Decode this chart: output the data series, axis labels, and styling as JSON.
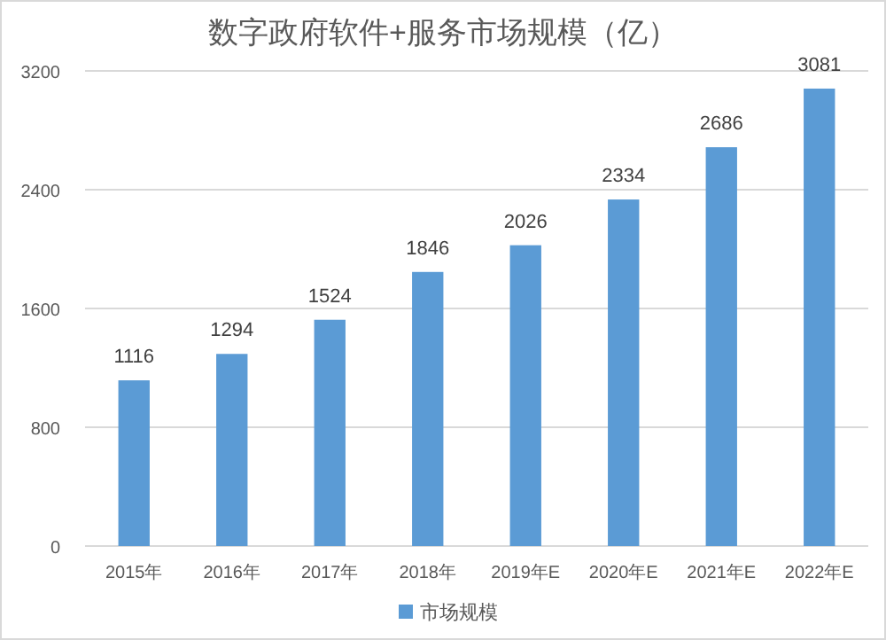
{
  "chart_data": {
    "type": "bar",
    "title": "数字政府软件+服务市场规模（亿）",
    "categories": [
      "2015年",
      "2016年",
      "2017年",
      "2018年",
      "2019年E",
      "2020年E",
      "2021年E",
      "2022年E"
    ],
    "series": [
      {
        "name": "市场规模",
        "color": "#5b9bd5",
        "values": [
          1116,
          1294,
          1524,
          1846,
          2026,
          2334,
          2686,
          3081
        ]
      }
    ],
    "ylim": [
      0,
      3200
    ],
    "yticks": [
      0,
      800,
      1600,
      2400,
      3200
    ],
    "grid": "y",
    "data_labels": true,
    "legend": "bottom"
  }
}
